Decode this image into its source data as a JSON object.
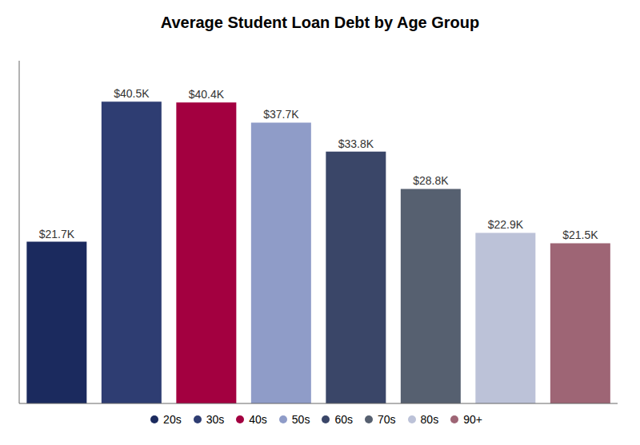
{
  "chart_data": {
    "type": "bar",
    "title": "Average Student Loan Debt by Age Group",
    "categories": [
      "20s",
      "30s",
      "40s",
      "50s",
      "60s",
      "70s",
      "80s",
      "90+"
    ],
    "values": [
      21700,
      40500,
      40400,
      37700,
      33800,
      28800,
      22900,
      21500
    ],
    "value_labels": [
      "$21.7K",
      "$40.5K",
      "$40.4K",
      "$37.7K",
      "$33.8K",
      "$28.8K",
      "$22.9K",
      "$21.5K"
    ],
    "colors": [
      "#1b2a5e",
      "#2e3d72",
      "#a30040",
      "#8f9cc8",
      "#3a4668",
      "#566070",
      "#bcc2d8",
      "#9e6575"
    ],
    "ylim": [
      0,
      46000
    ],
    "grid": false,
    "legend": "bottom",
    "data_labels": true,
    "tick_labels": false
  }
}
